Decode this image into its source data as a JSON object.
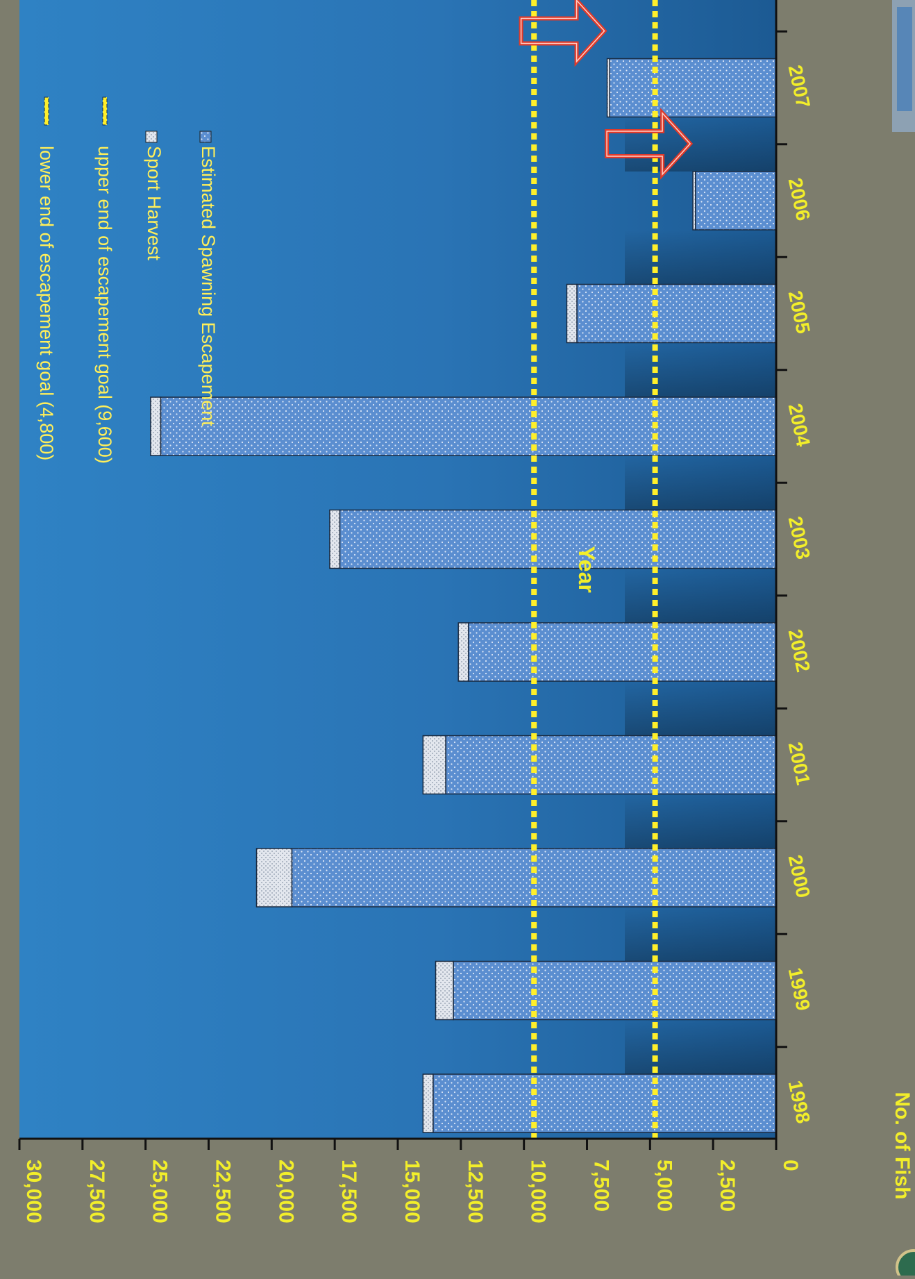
{
  "chart_data": {
    "type": "bar",
    "stacked": true,
    "orientation": "rotated-90-clockwise",
    "title": "",
    "xlabel": "Year",
    "ylabel": "No. of Fish",
    "categories": [
      "1998",
      "1999",
      "2000",
      "2001",
      "2002",
      "2003",
      "2004",
      "2005",
      "2006",
      "2007"
    ],
    "series": [
      {
        "name": "Estimated Spawning Escapement",
        "values": [
          13600,
          12800,
          19200,
          13100,
          12200,
          17300,
          24400,
          7900,
          3200,
          6600
        ]
      },
      {
        "name": "Sport Harvest",
        "values": [
          400,
          700,
          1400,
          900,
          400,
          400,
          400,
          400,
          100,
          100
        ]
      }
    ],
    "reference_lines": [
      {
        "name": "lower end of escapement goal (4,800)",
        "value": 4800
      },
      {
        "name": "upper end of escapement goal (9,600)",
        "value": 9600
      }
    ],
    "ylim": [
      0,
      30000
    ],
    "yticks": [
      "0",
      "2,500",
      "5,000",
      "7,500",
      "10,000",
      "12,500",
      "15,000",
      "17,500",
      "20,000",
      "22,500",
      "25,000",
      "27,500",
      "30,000"
    ],
    "highlighted_categories": [
      "2006",
      "2007"
    ],
    "legend_position": "top-left",
    "grid": false,
    "colors": {
      "bar_escapement": "#5b8ed0",
      "bar_harvest": "#d8dde6",
      "goal_line": "#ffef2a",
      "label_text": "#f2ee2a",
      "legend_text": "#ffef5a",
      "arrow": "#e03a2a",
      "plot_bg": "#2a78b8"
    }
  }
}
